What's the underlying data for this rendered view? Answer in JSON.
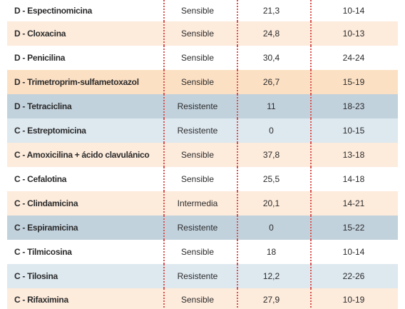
{
  "rows": [
    {
      "name": "D - Espectinomicina",
      "result": "Sensible",
      "value": "21,3",
      "range": "10-14",
      "bg": "#ffffff"
    },
    {
      "name": "D - Cloxacina",
      "result": "Sensible",
      "value": "24,8",
      "range": "10-13",
      "bg": "#fdebdc"
    },
    {
      "name": "D - Penicilina",
      "result": "Sensible",
      "value": "30,4",
      "range": "24-24",
      "bg": "#ffffff"
    },
    {
      "name": "D - Trimetroprim-sulfametoxazol",
      "result": "Sensible",
      "value": "26,7",
      "range": "15-19",
      "bg": "#fce0c4"
    },
    {
      "name": "D - Tetraciclina",
      "result": "Resistente",
      "value": "11",
      "range": "18-23",
      "bg": "#c2d2dd"
    },
    {
      "name": "C - Estreptomicina",
      "result": "Resistente",
      "value": "0",
      "range": "10-15",
      "bg": "#dde8ef"
    },
    {
      "name": "C - Amoxicilina + ácido clavulánico",
      "result": "Sensible",
      "value": "37,8",
      "range": "13-18",
      "bg": "#fdebdc"
    },
    {
      "name": "C - Cefalotina",
      "result": "Sensible",
      "value": "25,5",
      "range": "14-18",
      "bg": "#ffffff"
    },
    {
      "name": "C - Clindamicina",
      "result": "Intermedia",
      "value": "20,1",
      "range": "14-21",
      "bg": "#fdebdc"
    },
    {
      "name": "C - Espiramicina",
      "result": "Resistente",
      "value": "0",
      "range": "15-22",
      "bg": "#c2d2dd"
    },
    {
      "name": "C - Tilmicosina",
      "result": "Sensible",
      "value": "18",
      "range": "10-14",
      "bg": "#ffffff"
    },
    {
      "name": "C - Tilosina",
      "result": "Resistente",
      "value": "12,2",
      "range": "22-26",
      "bg": "#dde8ef"
    },
    {
      "name": "C - Rifaximina",
      "result": "Sensible",
      "value": "27,9",
      "range": "10-19",
      "bg": "#fdebdc"
    }
  ]
}
